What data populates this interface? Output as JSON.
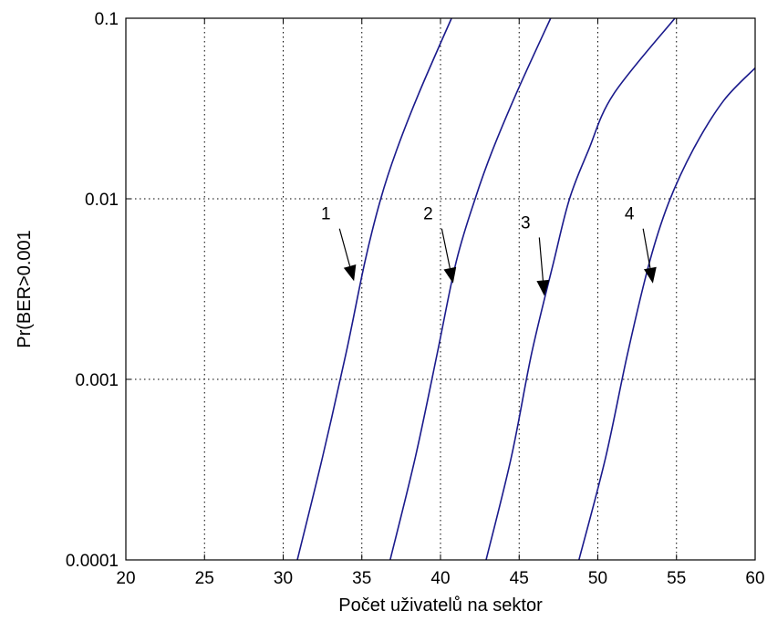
{
  "chart_data": {
    "type": "line",
    "title": "",
    "xlabel": "Počet uživatelů na sektor",
    "ylabel": "Pr(BER>0.001",
    "xlim": [
      20,
      60
    ],
    "ylim": [
      0.0001,
      0.1
    ],
    "yscale": "log",
    "grid": true,
    "x_ticks": [
      20,
      25,
      30,
      35,
      40,
      45,
      50,
      55,
      60
    ],
    "x_tick_labels": [
      "20",
      "25",
      "30",
      "35",
      "40",
      "45",
      "50",
      "55",
      "60"
    ],
    "y_ticks": [
      0.0001,
      0.001,
      0.01,
      0.1
    ],
    "y_tick_labels": [
      "0.0001",
      "0.001",
      "0.01",
      "0.1"
    ],
    "line_color": "#1a1a8c",
    "series": [
      {
        "x": [
          30.9,
          32.5,
          34.0,
          35.2,
          36.2,
          37.2,
          38.6,
          40.7
        ],
        "y": [
          0.0001,
          0.00037,
          0.0014,
          0.0045,
          0.01,
          0.0185,
          0.038,
          0.1
        ]
      },
      {
        "x": [
          36.8,
          38.4,
          39.8,
          41.0,
          42.2,
          43.3,
          44.8,
          47.0
        ],
        "y": [
          0.0001,
          0.00037,
          0.0014,
          0.0045,
          0.01,
          0.0185,
          0.038,
          0.1
        ]
      },
      {
        "x": [
          42.9,
          44.5,
          45.8,
          47.2,
          48.2,
          49.4,
          51.0,
          54.9
        ],
        "y": [
          0.0001,
          0.00037,
          0.0014,
          0.0045,
          0.01,
          0.0185,
          0.038,
          0.1
        ]
      },
      {
        "x": [
          48.8,
          50.5,
          51.9,
          53.3,
          54.5,
          56.1,
          58.0,
          60.0
        ],
        "y": [
          0.0001,
          0.00037,
          0.0014,
          0.0045,
          0.0095,
          0.019,
          0.035,
          0.053
        ]
      }
    ],
    "annotations": [
      {
        "text": "1",
        "label_x": 33.0,
        "label_y": 0.0075,
        "arrow_x": 34.5,
        "arrow_y": 0.0035
      },
      {
        "text": "2",
        "label_x": 39.5,
        "label_y": 0.0075,
        "arrow_x": 40.8,
        "arrow_y": 0.0034
      },
      {
        "text": "3",
        "label_x": 45.7,
        "label_y": 0.0067,
        "arrow_x": 46.6,
        "arrow_y": 0.0029
      },
      {
        "text": "4",
        "label_x": 52.3,
        "label_y": 0.0075,
        "arrow_x": 53.5,
        "arrow_y": 0.0034
      }
    ]
  }
}
